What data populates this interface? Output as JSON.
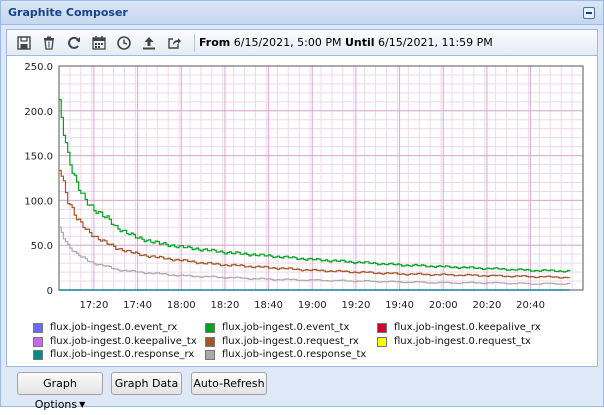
{
  "window": {
    "title": "Graphite Composer"
  },
  "toolbar": {
    "icons": [
      "save-icon",
      "trash-icon",
      "refresh-icon",
      "calendar-icon",
      "clock-icon",
      "upload-icon",
      "share-icon"
    ],
    "from_label": "From",
    "from_value": "6/15/2021, 5:00 PM",
    "until_label": "Until",
    "until_value": "6/15/2021, 11:59 PM"
  },
  "chart_data": {
    "type": "line",
    "ylim": [
      0,
      250
    ],
    "yticks": [
      "250.0",
      "200.0",
      "150.0",
      "100.0",
      "50.0",
      "0"
    ],
    "ytick_values": [
      250,
      200,
      150,
      100,
      50,
      0
    ],
    "xticks": [
      "17:20",
      "17:40",
      "18:00",
      "18:20",
      "18:40",
      "19:00",
      "19:20",
      "19:40",
      "20:00",
      "20:20",
      "20:40"
    ],
    "xtick_minutes": [
      1040,
      1060,
      1080,
      1100,
      1120,
      1140,
      1160,
      1180,
      1200,
      1220,
      1240
    ],
    "xlim_minutes": [
      1024,
      1264
    ],
    "grid": true,
    "series": [
      {
        "name": "flux.job-ingest.0.event_rx",
        "color": "#6b6bff",
        "values": [
          [
            1024,
            0
          ],
          [
            1258,
            0
          ]
        ]
      },
      {
        "name": "flux.job-ingest.0.event_tx",
        "color": "#00a020",
        "values": [
          [
            1024,
            206
          ],
          [
            1028,
            150
          ],
          [
            1032,
            118
          ],
          [
            1036,
            100
          ],
          [
            1040,
            90
          ],
          [
            1046,
            80
          ],
          [
            1050,
            70
          ],
          [
            1060,
            58
          ],
          [
            1070,
            52
          ],
          [
            1080,
            48
          ],
          [
            1090,
            45
          ],
          [
            1100,
            42
          ],
          [
            1120,
            38
          ],
          [
            1140,
            34
          ],
          [
            1160,
            31
          ],
          [
            1180,
            28
          ],
          [
            1200,
            26
          ],
          [
            1220,
            24
          ],
          [
            1240,
            22
          ],
          [
            1258,
            21
          ]
        ]
      },
      {
        "name": "flux.job-ingest.0.keepalive_rx",
        "color": "#cc0033",
        "values": []
      },
      {
        "name": "flux.job-ingest.0.keepalive_tx",
        "color": "#cc66ee",
        "values": [
          [
            1024,
            0
          ],
          [
            1258,
            0
          ]
        ]
      },
      {
        "name": "flux.job-ingest.0.request_rx",
        "color": "#a0582a",
        "values": [
          [
            1024,
            137
          ],
          [
            1028,
            100
          ],
          [
            1032,
            80
          ],
          [
            1036,
            68
          ],
          [
            1040,
            60
          ],
          [
            1046,
            52
          ],
          [
            1050,
            47
          ],
          [
            1060,
            40
          ],
          [
            1070,
            36
          ],
          [
            1080,
            33
          ],
          [
            1090,
            30
          ],
          [
            1100,
            28
          ],
          [
            1120,
            25
          ],
          [
            1140,
            22
          ],
          [
            1160,
            20
          ],
          [
            1180,
            18
          ],
          [
            1200,
            17
          ],
          [
            1220,
            16
          ],
          [
            1240,
            15
          ],
          [
            1258,
            14
          ]
        ]
      },
      {
        "name": "flux.job-ingest.0.request_tx",
        "color": "#ffff00",
        "values": []
      },
      {
        "name": "flux.job-ingest.0.response_rx",
        "color": "#008b8b",
        "values": [
          [
            1024,
            0
          ],
          [
            1258,
            0
          ]
        ]
      },
      {
        "name": "flux.job-ingest.0.response_tx",
        "color": "#aaaaaa",
        "values": [
          [
            1024,
            68
          ],
          [
            1028,
            50
          ],
          [
            1032,
            40
          ],
          [
            1036,
            34
          ],
          [
            1040,
            30
          ],
          [
            1046,
            26
          ],
          [
            1050,
            23
          ],
          [
            1060,
            20
          ],
          [
            1070,
            18
          ],
          [
            1080,
            16
          ],
          [
            1090,
            15
          ],
          [
            1100,
            14
          ],
          [
            1120,
            12
          ],
          [
            1140,
            11
          ],
          [
            1160,
            10
          ],
          [
            1180,
            9
          ],
          [
            1200,
            8
          ],
          [
            1220,
            8
          ],
          [
            1240,
            7
          ],
          [
            1258,
            7
          ]
        ]
      }
    ]
  },
  "buttons": {
    "graph_options": "Graph Options",
    "graph_data": "Graph Data",
    "auto_refresh": "Auto-Refresh"
  }
}
